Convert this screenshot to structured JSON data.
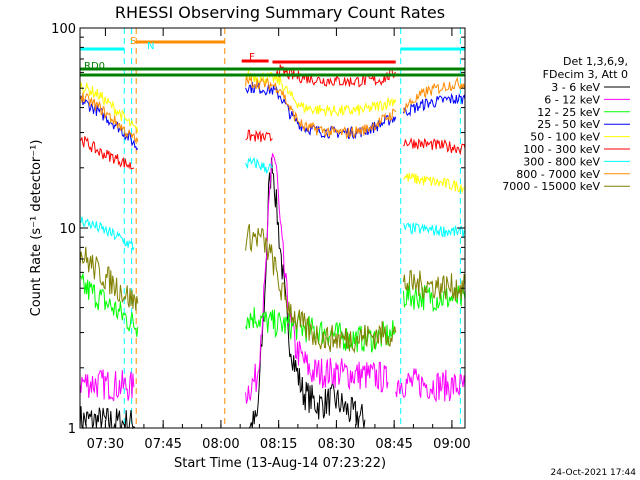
{
  "chart_data": {
    "type": "line",
    "title": "RHESSI Observing Summary Count Rates",
    "xlabel": "Start Time (13-Aug-14 07:23:22)",
    "ylabel": "Count Rate (s⁻¹ detector⁻¹)",
    "yscale": "log",
    "ylim": [
      1,
      100
    ],
    "xlim_minutes": [
      0,
      100
    ],
    "x_ticks": [
      {
        "label": "07:30",
        "min": 6.6
      },
      {
        "label": "07:45",
        "min": 21.6
      },
      {
        "label": "08:00",
        "min": 36.6
      },
      {
        "label": "08:15",
        "min": 51.6
      },
      {
        "label": "08:30",
        "min": 66.6
      },
      {
        "label": "08:45",
        "min": 81.6
      },
      {
        "label": "09:00",
        "min": 96.6
      }
    ],
    "y_ticks": [
      {
        "label": "1",
        "value": 1
      },
      {
        "label": "10",
        "value": 10
      },
      {
        "label": "100",
        "value": 100
      }
    ],
    "legend_header": [
      "Det 1,3,6,9,",
      "FDecim 3, Att 0"
    ],
    "series": [
      {
        "name": "3 - 6 keV",
        "color": "#000000",
        "segs": [
          [
            [
              0,
              1.1
            ],
            [
              14,
              1.05
            ],
            [
              15,
              1.0
            ]
          ],
          [
            [
              44,
              1.0
            ],
            [
              46,
              1.1
            ],
            [
              48,
              4.5
            ],
            [
              49,
              15
            ],
            [
              50,
              22
            ],
            [
              51,
              13
            ],
            [
              52,
              8
            ],
            [
              53,
              5
            ],
            [
              54,
              3
            ],
            [
              56,
              2
            ],
            [
              58,
              1.5
            ],
            [
              62,
              1.3
            ],
            [
              66,
              1.4
            ],
            [
              70,
              1.2
            ],
            [
              74,
              1.1
            ]
          ]
        ]
      },
      {
        "name": "6 - 12 keV",
        "color": "#ff00ff",
        "segs": [
          [
            [
              0,
              1.7
            ],
            [
              14,
              1.6
            ]
          ],
          [
            [
              43,
              1.5
            ],
            [
              46,
              1.8
            ],
            [
              48,
              5
            ],
            [
              50,
              25
            ],
            [
              51,
              20
            ],
            [
              52,
              10
            ],
            [
              54,
              4
            ],
            [
              56,
              2.5
            ],
            [
              60,
              1.9
            ],
            [
              66,
              1.9
            ],
            [
              78,
              1.8
            ],
            [
              80,
              1.7
            ]
          ],
          [
            [
              82,
              1.7
            ],
            [
              100,
              1.6
            ]
          ]
        ]
      },
      {
        "name": "12 - 25 keV",
        "color": "#00ff00",
        "segs": [
          [
            [
              0,
              5.2
            ],
            [
              5,
              4.5
            ],
            [
              10,
              3.8
            ],
            [
              14,
              3.3
            ],
            [
              15,
              3.2
            ]
          ],
          [
            [
              43,
              3.6
            ],
            [
              46,
              3.6
            ],
            [
              48,
              3.4
            ],
            [
              52,
              3.3
            ],
            [
              56,
              3.2
            ],
            [
              60,
              3.1
            ],
            [
              64,
              3.0
            ],
            [
              70,
              2.8
            ],
            [
              76,
              2.8
            ],
            [
              80,
              2.9
            ],
            [
              82,
              3.0
            ]
          ],
          [
            [
              84,
              4.6
            ],
            [
              100,
              4.4
            ]
          ]
        ]
      },
      {
        "name": "25 - 50 keV",
        "color": "#0000ff",
        "segs": [
          [
            [
              0,
              44
            ],
            [
              5,
              38
            ],
            [
              10,
              32
            ],
            [
              13,
              28
            ],
            [
              15,
              25
            ]
          ],
          [
            [
              43,
              51
            ],
            [
              50,
              49
            ],
            [
              52,
              46
            ],
            [
              55,
              36
            ],
            [
              58,
              32
            ],
            [
              62,
              30.5
            ],
            [
              66,
              30
            ],
            [
              70,
              30
            ],
            [
              74,
              30.5
            ],
            [
              78,
              33
            ],
            [
              82,
              36
            ]
          ],
          [
            [
              84,
              38
            ],
            [
              90,
              42
            ],
            [
              96,
              44
            ],
            [
              100,
              44
            ]
          ]
        ]
      },
      {
        "name": "50 - 100 keV",
        "color": "#ffff00",
        "segs": [
          [
            [
              0,
              52
            ],
            [
              5,
              46
            ],
            [
              10,
              38
            ],
            [
              13,
              33
            ],
            [
              15,
              30
            ]
          ],
          [
            [
              43,
              58
            ],
            [
              50,
              56
            ],
            [
              52,
              54
            ],
            [
              55,
              45
            ],
            [
              58,
              40
            ],
            [
              62,
              39
            ],
            [
              66,
              38.5
            ],
            [
              70,
              38.5
            ],
            [
              74,
              39
            ],
            [
              78,
              41
            ],
            [
              82,
              44
            ]
          ],
          [
            [
              84,
              18
            ],
            [
              100,
              16
            ]
          ]
        ]
      },
      {
        "name": "100 - 300 keV",
        "color": "#ff0000",
        "segs": [
          [
            [
              0,
              28
            ],
            [
              5,
              24
            ],
            [
              10,
              22
            ],
            [
              14,
              20
            ]
          ],
          [
            [
              43,
              29
            ],
            [
              50,
              28
            ]
          ],
          [
            [
              51,
              62
            ],
            [
              55,
              58
            ],
            [
              62,
              55
            ],
            [
              70,
              54
            ],
            [
              78,
              55
            ],
            [
              82,
              60
            ]
          ],
          [
            [
              84,
              27
            ],
            [
              100,
              25
            ]
          ]
        ]
      },
      {
        "name": "300 - 800 keV",
        "color": "#00ffff",
        "segs": [
          [
            [
              0,
              11
            ],
            [
              5,
              10
            ],
            [
              10,
              9
            ],
            [
              14,
              8
            ]
          ],
          [
            [
              43,
              21
            ],
            [
              46,
              21
            ],
            [
              48,
              20
            ],
            [
              50,
              20
            ]
          ],
          [
            [
              84,
              10
            ],
            [
              100,
              9.5
            ]
          ]
        ]
      },
      {
        "name": "800 - 7000 keV",
        "color": "#ff8c00",
        "segs": [
          [
            [
              0,
              46
            ],
            [
              5,
              40
            ],
            [
              10,
              33
            ],
            [
              13,
              29
            ],
            [
              15,
              27
            ]
          ],
          [
            [
              43,
              54
            ],
            [
              50,
              52
            ],
            [
              52,
              50
            ],
            [
              55,
              38
            ],
            [
              58,
              32
            ],
            [
              62,
              31
            ],
            [
              66,
              30
            ],
            [
              70,
              30
            ],
            [
              74,
              31
            ],
            [
              78,
              34
            ],
            [
              82,
              38
            ]
          ],
          [
            [
              84,
              40
            ],
            [
              90,
              48
            ],
            [
              96,
              52
            ],
            [
              100,
              53
            ]
          ]
        ]
      },
      {
        "name": "7000 - 15000 keV",
        "color": "#808000",
        "segs": [
          [
            [
              0,
              7.5
            ],
            [
              5,
              6
            ],
            [
              10,
              5
            ],
            [
              14,
              4.3
            ],
            [
              15,
              4.2
            ]
          ],
          [
            [
              43,
              9
            ],
            [
              47,
              9
            ],
            [
              50,
              7
            ],
            [
              52,
              5
            ],
            [
              56,
              3.5
            ],
            [
              60,
              3
            ],
            [
              64,
              2.8
            ],
            [
              70,
              2.8
            ],
            [
              76,
              2.9
            ],
            [
              82,
              3.0
            ]
          ],
          [
            [
              84,
              5.3
            ],
            [
              100,
              5.0
            ]
          ]
        ]
      }
    ],
    "flags": {
      "rd0_label": "RD0",
      "s_label": "S",
      "n_label": "N",
      "f_label": "F",
      "colors": {
        "cyan": "#00ffff",
        "orange": "#ff8c00",
        "green": "#008000",
        "red": "#ff0000"
      }
    }
  },
  "footer": {
    "timestamp": "24-Oct-2021 17:44"
  }
}
